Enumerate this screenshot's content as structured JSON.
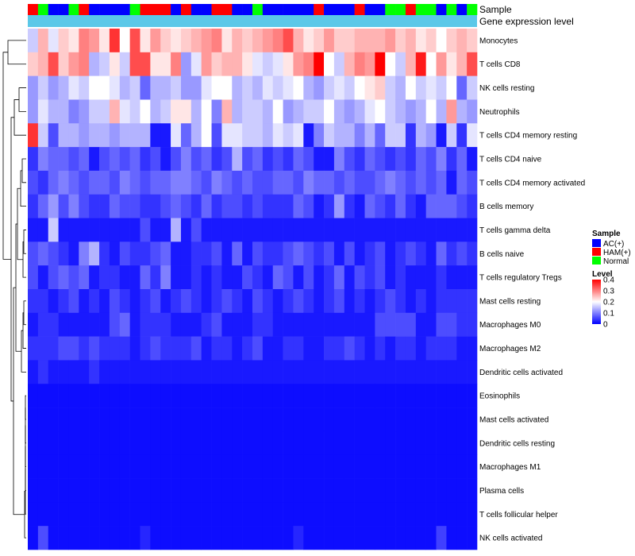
{
  "chart_data": {
    "type": "heatmap",
    "annotation_labels": {
      "sample": "Sample",
      "expression": "Gene expression level"
    },
    "sample_legend": {
      "title": "Sample",
      "items": [
        {
          "key": "A",
          "label": "AC(+)",
          "color": "#0000FF"
        },
        {
          "key": "H",
          "label": "HAM(+)",
          "color": "#FF0000"
        },
        {
          "key": "N",
          "label": "Normal",
          "color": "#00FF00"
        }
      ]
    },
    "level_legend": {
      "title": "Level",
      "ticks": [
        {
          "value": 0.4,
          "label": "0.4"
        },
        {
          "value": 0.3,
          "label": "0.3"
        },
        {
          "value": 0.2,
          "label": "0.2"
        },
        {
          "value": 0.1,
          "label": "0.1"
        },
        {
          "value": 0,
          "label": "0"
        }
      ],
      "range": [
        0,
        0.4
      ],
      "colors": [
        "#0000FF",
        "#FFFFFF",
        "#FF0000"
      ]
    },
    "expression_annotation_color": "#5BC8E8",
    "samples": "HNAANHAAAANHHHAHAAHHAANAAAAAHAAAHAANNHNNANAN",
    "rows": [
      {
        "name": "Monocytes",
        "values": [
          0.16,
          0.26,
          0.18,
          0.24,
          0.22,
          0.3,
          0.28,
          0.22,
          0.36,
          0.2,
          0.34,
          0.22,
          0.28,
          0.24,
          0.22,
          0.24,
          0.26,
          0.28,
          0.3,
          0.22,
          0.26,
          0.24,
          0.26,
          0.28,
          0.3,
          0.34,
          0.26,
          0.22,
          0.24,
          0.28,
          0.24,
          0.24,
          0.26,
          0.26,
          0.26,
          0.28,
          0.24,
          0.26,
          0.22,
          0.24,
          0.2,
          0.24,
          0.26,
          0.24
        ]
      },
      {
        "name": "T cells CD8",
        "values": [
          0.24,
          0.26,
          0.34,
          0.24,
          0.28,
          0.3,
          0.14,
          0.16,
          0.22,
          0.16,
          0.34,
          0.34,
          0.22,
          0.22,
          0.3,
          0.12,
          0.18,
          0.28,
          0.24,
          0.26,
          0.26,
          0.22,
          0.18,
          0.16,
          0.18,
          0.22,
          0.28,
          0.3,
          0.4,
          0.2,
          0.16,
          0.26,
          0.3,
          0.28,
          0.4,
          0.2,
          0.16,
          0.26,
          0.38,
          0.2,
          0.28,
          0.22,
          0.26,
          0.34
        ]
      },
      {
        "name": "NK cells resting",
        "values": [
          0.12,
          0.16,
          0.12,
          0.14,
          0.18,
          0.16,
          0.2,
          0.2,
          0.18,
          0.14,
          0.16,
          0.08,
          0.14,
          0.14,
          0.16,
          0.12,
          0.12,
          0.18,
          0.2,
          0.2,
          0.14,
          0.16,
          0.14,
          0.18,
          0.16,
          0.18,
          0.2,
          0.14,
          0.12,
          0.16,
          0.18,
          0.16,
          0.2,
          0.22,
          0.24,
          0.16,
          0.14,
          0.2,
          0.16,
          0.18,
          0.16,
          0.2,
          0.08,
          0.16
        ]
      },
      {
        "name": "Neutrophils",
        "values": [
          0.12,
          0.18,
          0.14,
          0.14,
          0.1,
          0.12,
          0.16,
          0.16,
          0.26,
          0.18,
          0.16,
          0.2,
          0.14,
          0.16,
          0.22,
          0.22,
          0.14,
          0.2,
          0.1,
          0.26,
          0.14,
          0.16,
          0.16,
          0.14,
          0.2,
          0.12,
          0.14,
          0.16,
          0.16,
          0.2,
          0.14,
          0.12,
          0.14,
          0.18,
          0.2,
          0.16,
          0.14,
          0.12,
          0.14,
          0.2,
          0.14,
          0.28,
          0.14,
          0.12
        ]
      },
      {
        "name": "T cells CD4 memory resting",
        "values": [
          0.36,
          0.16,
          0.06,
          0.14,
          0.14,
          0.12,
          0.14,
          0.14,
          0.12,
          0.14,
          0.14,
          0.14,
          0.02,
          0.02,
          0.18,
          0.08,
          0.14,
          0.2,
          0.06,
          0.18,
          0.18,
          0.16,
          0.16,
          0.14,
          0.18,
          0.16,
          0.18,
          0.02,
          0.1,
          0.16,
          0.14,
          0.14,
          0.1,
          0.14,
          0.08,
          0.16,
          0.16,
          0.04,
          0.14,
          0.12,
          0.02,
          0.16,
          0.04,
          0.18
        ]
      },
      {
        "name": "T cells CD4 naive",
        "values": [
          0.04,
          0.1,
          0.08,
          0.08,
          0.06,
          0.08,
          0.02,
          0.06,
          0.08,
          0.06,
          0.08,
          0.04,
          0.06,
          0.02,
          0.06,
          0.1,
          0.06,
          0.08,
          0.04,
          0.06,
          0.14,
          0.06,
          0.08,
          0.04,
          0.06,
          0.04,
          0.08,
          0.06,
          0.02,
          0.02,
          0.1,
          0.06,
          0.04,
          0.08,
          0.06,
          0.04,
          0.06,
          0.04,
          0.08,
          0.06,
          0.1,
          0.04,
          0.08,
          0.02
        ]
      },
      {
        "name": "T cells CD4 memory activated",
        "values": [
          0.06,
          0.04,
          0.08,
          0.1,
          0.08,
          0.06,
          0.08,
          0.08,
          0.06,
          0.1,
          0.08,
          0.06,
          0.08,
          0.08,
          0.1,
          0.1,
          0.08,
          0.06,
          0.1,
          0.08,
          0.06,
          0.08,
          0.06,
          0.06,
          0.08,
          0.08,
          0.06,
          0.1,
          0.08,
          0.08,
          0.06,
          0.08,
          0.06,
          0.06,
          0.08,
          0.1,
          0.08,
          0.06,
          0.08,
          0.06,
          0.08,
          0.02,
          0.08,
          0.06
        ]
      },
      {
        "name": "B cells memory",
        "values": [
          0.04,
          0.08,
          0.12,
          0.06,
          0.1,
          0.06,
          0.04,
          0.04,
          0.08,
          0.06,
          0.06,
          0.04,
          0.04,
          0.06,
          0.08,
          0.06,
          0.04,
          0.08,
          0.04,
          0.06,
          0.06,
          0.04,
          0.06,
          0.04,
          0.04,
          0.04,
          0.08,
          0.06,
          0.02,
          0.04,
          0.12,
          0.04,
          0.02,
          0.08,
          0.06,
          0.04,
          0.08,
          0.04,
          0.02,
          0.08,
          0.08,
          0.08,
          0.06,
          0.04
        ]
      },
      {
        "name": "T cells gamma delta",
        "values": [
          0.02,
          0.02,
          0.16,
          0.02,
          0.02,
          0.02,
          0.02,
          0.02,
          0.02,
          0.02,
          0.02,
          0.06,
          0.02,
          0.02,
          0.14,
          0.02,
          0.06,
          0.02,
          0.02,
          0.02,
          0.02,
          0.02,
          0.02,
          0.02,
          0.02,
          0.02,
          0.02,
          0.02,
          0.02,
          0.02,
          0.02,
          0.02,
          0.02,
          0.02,
          0.02,
          0.02,
          0.02,
          0.02,
          0.02,
          0.02,
          0.02,
          0.02,
          0.02,
          0.02
        ]
      },
      {
        "name": "B cells naive",
        "values": [
          0.06,
          0.08,
          0.06,
          0.04,
          0.02,
          0.1,
          0.14,
          0.04,
          0.02,
          0.06,
          0.04,
          0.04,
          0.06,
          0.08,
          0.02,
          0.02,
          0.04,
          0.04,
          0.06,
          0.02,
          0.08,
          0.02,
          0.06,
          0.04,
          0.04,
          0.06,
          0.08,
          0.06,
          0.04,
          0.06,
          0.02,
          0.06,
          0.02,
          0.04,
          0.06,
          0.02,
          0.04,
          0.06,
          0.04,
          0.02,
          0.08,
          0.04,
          0.06,
          0.04
        ]
      },
      {
        "name": "T cells regulatory  Tregs",
        "values": [
          0.06,
          0.02,
          0.06,
          0.08,
          0.06,
          0.08,
          0.02,
          0.04,
          0.04,
          0.02,
          0.02,
          0.08,
          0.04,
          0.1,
          0.02,
          0.02,
          0.04,
          0.02,
          0.04,
          0.02,
          0.02,
          0.06,
          0.04,
          0.02,
          0.08,
          0.06,
          0.02,
          0.06,
          0.02,
          0.04,
          0.08,
          0.02,
          0.06,
          0.04,
          0.06,
          0.02,
          0.04,
          0.02,
          0.02,
          0.02,
          0.04,
          0.02,
          0.02,
          0.02
        ]
      },
      {
        "name": "Mast cells resting",
        "values": [
          0.04,
          0.04,
          0.02,
          0.04,
          0.06,
          0.02,
          0.04,
          0.02,
          0.06,
          0.04,
          0.02,
          0.04,
          0.06,
          0.02,
          0.04,
          0.06,
          0.04,
          0.02,
          0.04,
          0.06,
          0.04,
          0.02,
          0.06,
          0.04,
          0.02,
          0.04,
          0.06,
          0.04,
          0.02,
          0.04,
          0.06,
          0.02,
          0.04,
          0.02,
          0.04,
          0.06,
          0.04,
          0.02,
          0.04,
          0.02,
          0.04,
          0.04,
          0.04,
          0.04
        ]
      },
      {
        "name": "Macrophages M0",
        "values": [
          0.02,
          0.04,
          0.04,
          0.02,
          0.02,
          0.02,
          0.02,
          0.02,
          0.06,
          0.08,
          0.02,
          0.04,
          0.04,
          0.04,
          0.02,
          0.02,
          0.02,
          0.04,
          0.06,
          0.02,
          0.02,
          0.02,
          0.04,
          0.04,
          0.02,
          0.02,
          0.02,
          0.02,
          0.02,
          0.02,
          0.02,
          0.02,
          0.02,
          0.02,
          0.06,
          0.06,
          0.06,
          0.06,
          0.02,
          0.02,
          0.06,
          0.06,
          0.04,
          0.04
        ]
      },
      {
        "name": "Macrophages M2",
        "values": [
          0.04,
          0.04,
          0.04,
          0.06,
          0.06,
          0.04,
          0.06,
          0.04,
          0.04,
          0.04,
          0.02,
          0.04,
          0.06,
          0.04,
          0.04,
          0.04,
          0.06,
          0.02,
          0.04,
          0.04,
          0.02,
          0.04,
          0.06,
          0.02,
          0.02,
          0.04,
          0.04,
          0.02,
          0.02,
          0.04,
          0.04,
          0.06,
          0.04,
          0.02,
          0.04,
          0.02,
          0.04,
          0.04,
          0.02,
          0.04,
          0.04,
          0.04,
          0.02,
          0.02
        ]
      },
      {
        "name": "Dendritic cells activated",
        "values": [
          0.02,
          0.04,
          0.02,
          0.02,
          0.02,
          0.02,
          0.04,
          0.02,
          0.02,
          0.02,
          0.02,
          0.02,
          0.02,
          0.02,
          0.02,
          0.02,
          0.02,
          0.02,
          0.02,
          0.02,
          0.02,
          0.02,
          0.02,
          0.02,
          0.02,
          0.02,
          0.02,
          0.02,
          0.02,
          0.02,
          0.02,
          0.02,
          0.02,
          0.02,
          0.02,
          0.02,
          0.02,
          0.02,
          0.02,
          0.02,
          0.02,
          0.02,
          0.02,
          0.02
        ]
      },
      {
        "name": "Eosinophils",
        "values": [
          0.01,
          0.01,
          0.01,
          0.01,
          0.01,
          0.01,
          0.01,
          0.01,
          0.01,
          0.01,
          0.01,
          0.01,
          0.01,
          0.01,
          0.01,
          0.01,
          0.01,
          0.01,
          0.01,
          0.01,
          0.01,
          0.01,
          0.01,
          0.01,
          0.01,
          0.01,
          0.01,
          0.01,
          0.01,
          0.01,
          0.01,
          0.01,
          0.01,
          0.01,
          0.01,
          0.01,
          0.01,
          0.01,
          0.01,
          0.01,
          0.01,
          0.01,
          0.01,
          0.01
        ]
      },
      {
        "name": "Mast cells activated",
        "values": [
          0.01,
          0.01,
          0.01,
          0.01,
          0.01,
          0.01,
          0.01,
          0.01,
          0.01,
          0.01,
          0.01,
          0.01,
          0.01,
          0.01,
          0.01,
          0.01,
          0.01,
          0.01,
          0.01,
          0.01,
          0.01,
          0.01,
          0.01,
          0.01,
          0.01,
          0.01,
          0.01,
          0.01,
          0.01,
          0.01,
          0.01,
          0.01,
          0.01,
          0.01,
          0.01,
          0.01,
          0.01,
          0.01,
          0.01,
          0.01,
          0.01,
          0.01,
          0.01,
          0.01
        ]
      },
      {
        "name": "Dendritic cells resting",
        "values": [
          0.01,
          0.01,
          0.01,
          0.01,
          0.01,
          0.01,
          0.01,
          0.01,
          0.01,
          0.01,
          0.01,
          0.01,
          0.01,
          0.01,
          0.01,
          0.01,
          0.01,
          0.01,
          0.01,
          0.01,
          0.01,
          0.01,
          0.01,
          0.01,
          0.01,
          0.01,
          0.01,
          0.01,
          0.01,
          0.01,
          0.01,
          0.01,
          0.01,
          0.01,
          0.01,
          0.01,
          0.01,
          0.01,
          0.01,
          0.01,
          0.01,
          0.01,
          0.01,
          0.01
        ]
      },
      {
        "name": "Macrophages M1",
        "values": [
          0.01,
          0.01,
          0.01,
          0.01,
          0.01,
          0.01,
          0.01,
          0.01,
          0.01,
          0.01,
          0.01,
          0.01,
          0.01,
          0.01,
          0.01,
          0.01,
          0.01,
          0.01,
          0.01,
          0.01,
          0.01,
          0.01,
          0.01,
          0.01,
          0.01,
          0.01,
          0.01,
          0.01,
          0.01,
          0.01,
          0.01,
          0.01,
          0.01,
          0.01,
          0.01,
          0.01,
          0.01,
          0.01,
          0.01,
          0.01,
          0.01,
          0.01,
          0.01,
          0.01
        ]
      },
      {
        "name": "Plasma cells",
        "values": [
          0.01,
          0.01,
          0.01,
          0.01,
          0.01,
          0.01,
          0.01,
          0.01,
          0.01,
          0.01,
          0.01,
          0.01,
          0.01,
          0.01,
          0.01,
          0.01,
          0.01,
          0.01,
          0.01,
          0.01,
          0.01,
          0.01,
          0.01,
          0.01,
          0.01,
          0.01,
          0.01,
          0.01,
          0.01,
          0.01,
          0.01,
          0.01,
          0.01,
          0.01,
          0.01,
          0.01,
          0.01,
          0.01,
          0.01,
          0.01,
          0.01,
          0.01,
          0.01,
          0.01
        ]
      },
      {
        "name": "T cells follicular helper",
        "values": [
          0.01,
          0.01,
          0.01,
          0.01,
          0.01,
          0.01,
          0.01,
          0.01,
          0.01,
          0.01,
          0.01,
          0.01,
          0.01,
          0.01,
          0.01,
          0.01,
          0.01,
          0.01,
          0.01,
          0.01,
          0.01,
          0.01,
          0.01,
          0.01,
          0.01,
          0.01,
          0.01,
          0.01,
          0.01,
          0.01,
          0.01,
          0.01,
          0.01,
          0.01,
          0.01,
          0.01,
          0.01,
          0.01,
          0.01,
          0.01,
          0.01,
          0.01,
          0.01,
          0.01
        ]
      },
      {
        "name": "NK cells activated",
        "values": [
          0.01,
          0.06,
          0.01,
          0.01,
          0.01,
          0.01,
          0.01,
          0.01,
          0.01,
          0.01,
          0.01,
          0.03,
          0.01,
          0.01,
          0.01,
          0.01,
          0.01,
          0.01,
          0.01,
          0.01,
          0.01,
          0.01,
          0.01,
          0.01,
          0.01,
          0.01,
          0.03,
          0.01,
          0.01,
          0.01,
          0.01,
          0.01,
          0.01,
          0.01,
          0.01,
          0.01,
          0.01,
          0.01,
          0.01,
          0.01,
          0.05,
          0.01,
          0.01,
          0.01
        ]
      }
    ]
  }
}
